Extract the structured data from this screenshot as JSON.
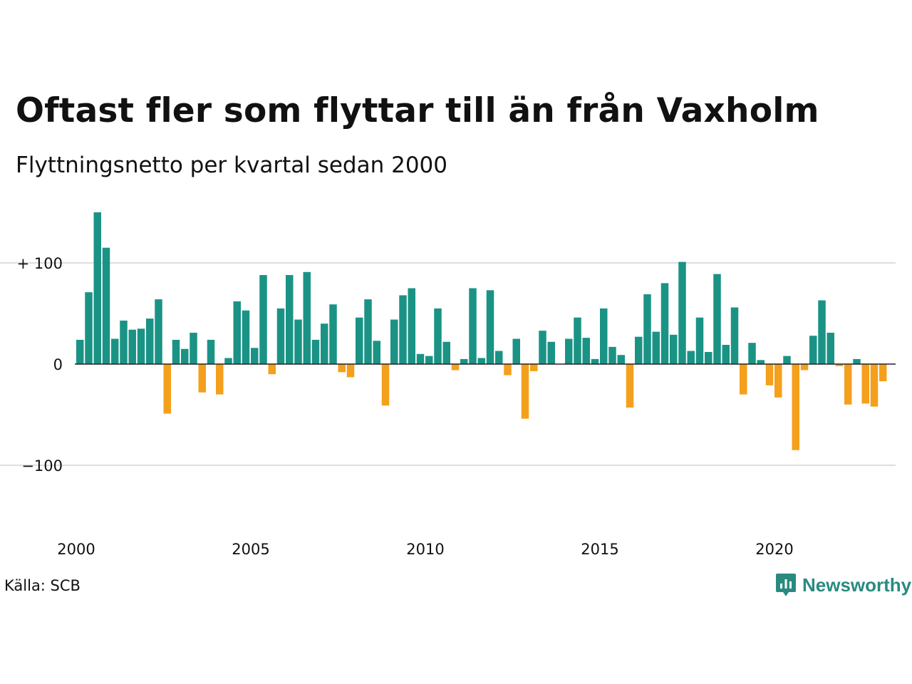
{
  "header": {
    "title": "Oftast fler som flyttar till än från Vaxholm",
    "subtitle": "Flyttningsnetto per kvartal sedan 2000"
  },
  "footer": {
    "source": "Källa: SCB",
    "brand": "Newsworthy"
  },
  "colors": {
    "positive": "#1a9385",
    "negative": "#f4a01c",
    "grid": "#dedede",
    "text": "#111111",
    "brand": "#2a8a80"
  },
  "icons": {
    "brand_logo": "newsworthy-logo-icon"
  },
  "chart_data": {
    "type": "bar",
    "title": "Oftast fler som flyttar till än från Vaxholm",
    "subtitle": "Flyttningsnetto per kvartal sedan 2000",
    "x_start": 2000,
    "periods_per_year": 4,
    "x_tick_labels": [
      "2000",
      "2005",
      "2010",
      "2015",
      "2020"
    ],
    "y_tick_values": [
      100,
      0,
      -100
    ],
    "y_tick_labels": [
      "+ 100",
      "0",
      "−100"
    ],
    "ylim": [
      -160,
      160
    ],
    "grid": true,
    "values": [
      24,
      71,
      150,
      115,
      25,
      43,
      34,
      35,
      45,
      64,
      -49,
      24,
      15,
      31,
      -28,
      24,
      -30,
      6,
      62,
      53,
      16,
      88,
      -10,
      55,
      88,
      44,
      91,
      24,
      40,
      59,
      -8,
      -13,
      46,
      64,
      23,
      -41,
      44,
      68,
      75,
      10,
      8,
      55,
      22,
      -6,
      5,
      75,
      6,
      73,
      13,
      -11,
      25,
      -54,
      -7,
      33,
      22,
      0,
      25,
      46,
      26,
      5,
      55,
      17,
      9,
      -43,
      27,
      69,
      32,
      80,
      29,
      101,
      13,
      46,
      12,
      89,
      19,
      56,
      -30,
      21,
      4,
      -21,
      -33,
      8,
      -85,
      -6,
      28,
      63,
      31,
      -2,
      -40,
      5,
      -39,
      -42,
      -17
    ]
  }
}
